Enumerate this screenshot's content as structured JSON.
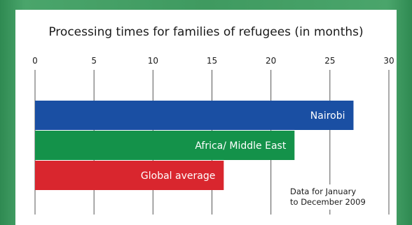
{
  "chart_data": {
    "type": "bar",
    "orientation": "horizontal",
    "title": "Processing times for families of refugees (in months)",
    "xlabel": "",
    "ylabel": "",
    "xlim": [
      0,
      30
    ],
    "xticks": [
      "0",
      "5",
      "10",
      "15",
      "20",
      "25",
      "30"
    ],
    "grid": true,
    "categories": [
      "Nairobi",
      "Africa/ Middle East",
      "Global average"
    ],
    "values": [
      27,
      22,
      16
    ],
    "colors": [
      "#1a4fa3",
      "#14924a",
      "#d9262e"
    ],
    "annotation": [
      "Data for January",
      "to December 2009"
    ]
  }
}
